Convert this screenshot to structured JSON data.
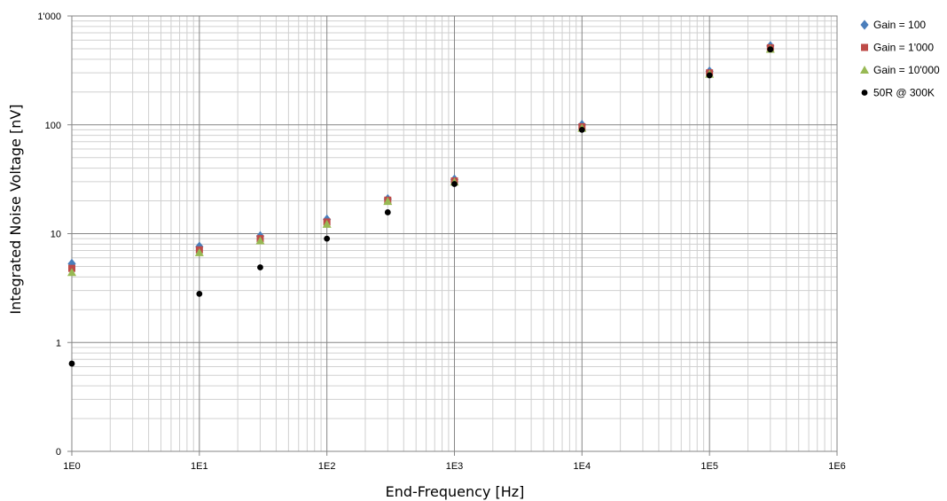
{
  "chart_data": {
    "type": "scatter",
    "xlabel": "End-Frequency [Hz]",
    "ylabel": "Integrated Noise Voltage [nV]",
    "x_scale": "log",
    "y_scale": "log",
    "xlim": [
      1,
      1000000
    ],
    "ylim": [
      0.1,
      1000
    ],
    "x_ticks": [
      {
        "value": 1,
        "label": "1E0"
      },
      {
        "value": 10,
        "label": "1E1"
      },
      {
        "value": 100,
        "label": "1E2"
      },
      {
        "value": 1000,
        "label": "1E3"
      },
      {
        "value": 10000,
        "label": "1E4"
      },
      {
        "value": 100000,
        "label": "1E5"
      },
      {
        "value": 1000000,
        "label": "1E6"
      }
    ],
    "y_ticks": [
      {
        "value": 0.1,
        "label": "0"
      },
      {
        "value": 1,
        "label": "1"
      },
      {
        "value": 10,
        "label": "10"
      },
      {
        "value": 100,
        "label": "100"
      },
      {
        "value": 1000,
        "label": "1'000"
      }
    ],
    "grid": true,
    "legend_position": "right",
    "series": [
      {
        "name": "Gain = 100",
        "marker": "diamond",
        "color": "#4a7ebb",
        "points": [
          [
            1,
            5.3
          ],
          [
            10,
            7.6
          ],
          [
            30,
            9.5
          ],
          [
            100,
            13.5
          ],
          [
            300,
            20.8
          ],
          [
            1000,
            31.5
          ],
          [
            10000,
            100
          ],
          [
            100000,
            310
          ],
          [
            300000,
            530
          ]
        ]
      },
      {
        "name": "Gain = 1'000",
        "marker": "square",
        "color": "#be4b48",
        "points": [
          [
            1,
            4.8
          ],
          [
            10,
            7.1
          ],
          [
            30,
            9.0
          ],
          [
            100,
            12.8
          ],
          [
            300,
            20.3
          ],
          [
            1000,
            30.5
          ],
          [
            10000,
            96
          ],
          [
            100000,
            300
          ],
          [
            300000,
            510
          ]
        ]
      },
      {
        "name": "Gain = 10'000",
        "marker": "triangle",
        "color": "#98b954",
        "points": [
          [
            1,
            4.4
          ],
          [
            10,
            6.7
          ],
          [
            30,
            8.6
          ],
          [
            100,
            12.2
          ],
          [
            300,
            19.8
          ],
          [
            1000,
            29.8
          ],
          [
            10000,
            93
          ],
          [
            100000,
            292
          ],
          [
            300000,
            495
          ]
        ]
      },
      {
        "name": "50R @ 300K",
        "marker": "circle",
        "color": "#000000",
        "points": [
          [
            1,
            0.64
          ],
          [
            10,
            2.8
          ],
          [
            30,
            4.9
          ],
          [
            100,
            9.0
          ],
          [
            300,
            15.7
          ],
          [
            1000,
            28.6
          ],
          [
            10000,
            90
          ],
          [
            100000,
            285
          ],
          [
            300000,
            493
          ]
        ]
      }
    ]
  }
}
